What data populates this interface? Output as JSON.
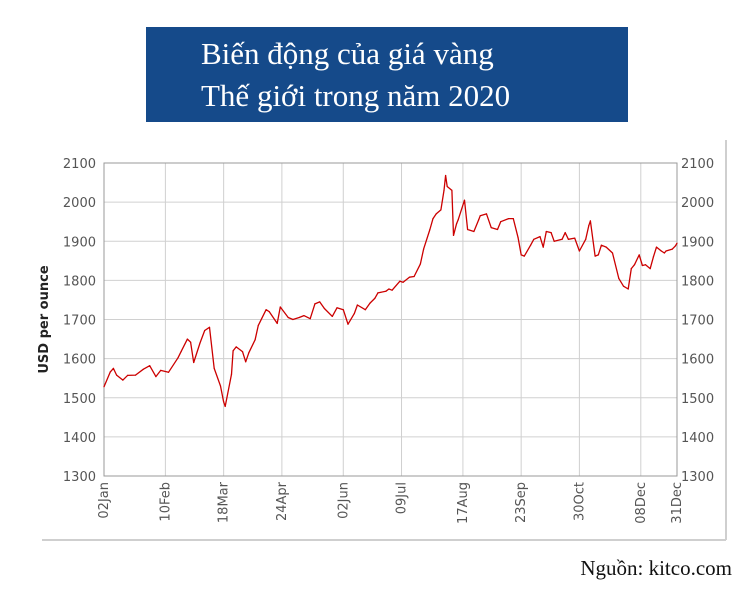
{
  "title": {
    "line1": "Biến động của giá vàng",
    "line2": "Thế giới trong năm 2020"
  },
  "source": "Nguồn: kitco.com",
  "chart_data": {
    "type": "line",
    "ylabel": "USD per ounce",
    "ylim": [
      1300,
      2100
    ],
    "yticks": [
      1300,
      1400,
      1500,
      1600,
      1700,
      1800,
      1900,
      2000,
      2100
    ],
    "ytick_labels": [
      "1300",
      "1400",
      "1500",
      "1600",
      "1700",
      "1800",
      "1900",
      "2000",
      "2100"
    ],
    "xlim": [
      "2020-01-02",
      "2020-12-31"
    ],
    "xticks": [
      "2020-01-02",
      "2020-02-10",
      "2020-03-18",
      "2020-04-24",
      "2020-06-02",
      "2020-07-09",
      "2020-08-17",
      "2020-09-23",
      "2020-10-30",
      "2020-12-08",
      "2020-12-31"
    ],
    "xtick_labels": [
      "02Jan",
      "10Feb",
      "18Mar",
      "24Apr",
      "02Jun",
      "09Jul",
      "17Aug",
      "23Sep",
      "30Oct",
      "08Dec",
      "31Dec"
    ],
    "grid": true,
    "color": "#cc0000",
    "series": [
      {
        "points": [
          [
            "2020-01-02",
            1528
          ],
          [
            "2020-01-06",
            1566
          ],
          [
            "2020-01-08",
            1575
          ],
          [
            "2020-01-10",
            1558
          ],
          [
            "2020-01-14",
            1545
          ],
          [
            "2020-01-17",
            1557
          ],
          [
            "2020-01-22",
            1558
          ],
          [
            "2020-01-27",
            1573
          ],
          [
            "2020-01-31",
            1582
          ],
          [
            "2020-02-04",
            1554
          ],
          [
            "2020-02-07",
            1570
          ],
          [
            "2020-02-12",
            1565
          ],
          [
            "2020-02-18",
            1602
          ],
          [
            "2020-02-20",
            1618
          ],
          [
            "2020-02-24",
            1650
          ],
          [
            "2020-02-26",
            1642
          ],
          [
            "2020-02-28",
            1590
          ],
          [
            "2020-03-03",
            1640
          ],
          [
            "2020-03-06",
            1672
          ],
          [
            "2020-03-09",
            1680
          ],
          [
            "2020-03-12",
            1575
          ],
          [
            "2020-03-16",
            1530
          ],
          [
            "2020-03-18",
            1490
          ],
          [
            "2020-03-19",
            1478
          ],
          [
            "2020-03-23",
            1560
          ],
          [
            "2020-03-24",
            1620
          ],
          [
            "2020-03-26",
            1630
          ],
          [
            "2020-03-30",
            1618
          ],
          [
            "2020-04-01",
            1592
          ],
          [
            "2020-04-03",
            1615
          ],
          [
            "2020-04-07",
            1648
          ],
          [
            "2020-04-09",
            1685
          ],
          [
            "2020-04-14",
            1725
          ],
          [
            "2020-04-16",
            1720
          ],
          [
            "2020-04-21",
            1690
          ],
          [
            "2020-04-23",
            1732
          ],
          [
            "2020-04-28",
            1705
          ],
          [
            "2020-05-01",
            1700
          ],
          [
            "2020-05-05",
            1705
          ],
          [
            "2020-05-08",
            1710
          ],
          [
            "2020-05-12",
            1702
          ],
          [
            "2020-05-15",
            1740
          ],
          [
            "2020-05-18",
            1745
          ],
          [
            "2020-05-21",
            1728
          ],
          [
            "2020-05-26",
            1708
          ],
          [
            "2020-05-29",
            1730
          ],
          [
            "2020-06-02",
            1725
          ],
          [
            "2020-06-05",
            1688
          ],
          [
            "2020-06-09",
            1715
          ],
          [
            "2020-06-11",
            1737
          ],
          [
            "2020-06-16",
            1725
          ],
          [
            "2020-06-19",
            1742
          ],
          [
            "2020-06-22",
            1754
          ],
          [
            "2020-06-24",
            1768
          ],
          [
            "2020-06-29",
            1772
          ],
          [
            "2020-07-01",
            1778
          ],
          [
            "2020-07-03",
            1775
          ],
          [
            "2020-07-08",
            1798
          ],
          [
            "2020-07-10",
            1795
          ],
          [
            "2020-07-14",
            1808
          ],
          [
            "2020-07-17",
            1810
          ],
          [
            "2020-07-21",
            1842
          ],
          [
            "2020-07-23",
            1880
          ],
          [
            "2020-07-27",
            1930
          ],
          [
            "2020-07-29",
            1958
          ],
          [
            "2020-07-31",
            1970
          ],
          [
            "2020-08-03",
            1980
          ],
          [
            "2020-08-05",
            2030
          ],
          [
            "2020-08-06",
            2068
          ],
          [
            "2020-08-07",
            2040
          ],
          [
            "2020-08-10",
            2030
          ],
          [
            "2020-08-11",
            1915
          ],
          [
            "2020-08-13",
            1945
          ],
          [
            "2020-08-14",
            1955
          ],
          [
            "2020-08-18",
            2005
          ],
          [
            "2020-08-20",
            1930
          ],
          [
            "2020-08-24",
            1925
          ],
          [
            "2020-08-27",
            1955
          ],
          [
            "2020-08-28",
            1965
          ],
          [
            "2020-09-01",
            1970
          ],
          [
            "2020-09-04",
            1935
          ],
          [
            "2020-09-08",
            1930
          ],
          [
            "2020-09-10",
            1950
          ],
          [
            "2020-09-15",
            1958
          ],
          [
            "2020-09-18",
            1958
          ],
          [
            "2020-09-21",
            1910
          ],
          [
            "2020-09-23",
            1865
          ],
          [
            "2020-09-25",
            1862
          ],
          [
            "2020-09-29",
            1890
          ],
          [
            "2020-10-01",
            1905
          ],
          [
            "2020-10-05",
            1912
          ],
          [
            "2020-10-07",
            1885
          ],
          [
            "2020-10-09",
            1925
          ],
          [
            "2020-10-12",
            1922
          ],
          [
            "2020-10-14",
            1900
          ],
          [
            "2020-10-19",
            1905
          ],
          [
            "2020-10-21",
            1922
          ],
          [
            "2020-10-23",
            1905
          ],
          [
            "2020-10-27",
            1908
          ],
          [
            "2020-10-30",
            1875
          ],
          [
            "2020-11-03",
            1905
          ],
          [
            "2020-11-05",
            1940
          ],
          [
            "2020-11-06",
            1952
          ],
          [
            "2020-11-09",
            1862
          ],
          [
            "2020-11-11",
            1865
          ],
          [
            "2020-11-13",
            1890
          ],
          [
            "2020-11-16",
            1885
          ],
          [
            "2020-11-20",
            1870
          ],
          [
            "2020-11-24",
            1805
          ],
          [
            "2020-11-27",
            1785
          ],
          [
            "2020-11-30",
            1778
          ],
          [
            "2020-12-02",
            1830
          ],
          [
            "2020-12-04",
            1840
          ],
          [
            "2020-12-07",
            1865
          ],
          [
            "2020-12-09",
            1838
          ],
          [
            "2020-12-11",
            1840
          ],
          [
            "2020-12-14",
            1830
          ],
          [
            "2020-12-16",
            1860
          ],
          [
            "2020-12-18",
            1885
          ],
          [
            "2020-12-21",
            1875
          ],
          [
            "2020-12-23",
            1870
          ],
          [
            "2020-12-24",
            1875
          ],
          [
            "2020-12-28",
            1880
          ],
          [
            "2020-12-30",
            1888
          ],
          [
            "2020-12-31",
            1895
          ]
        ]
      }
    ]
  }
}
